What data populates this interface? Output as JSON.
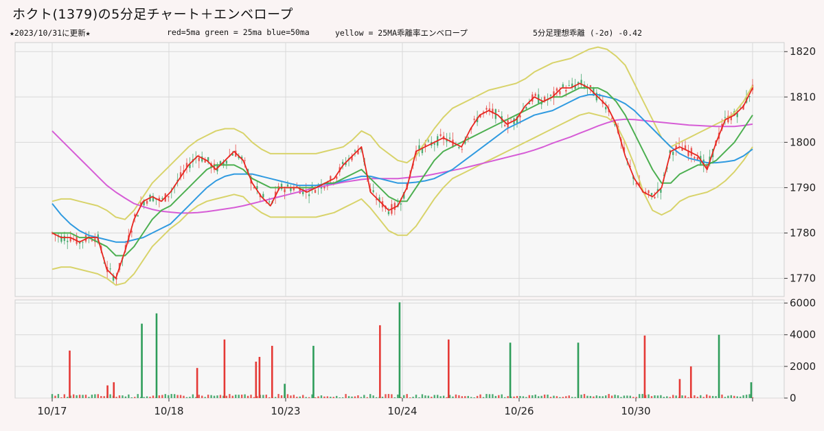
{
  "title": "ホクト(1379)の5分足チャート＋エンベロープ",
  "subtitle": {
    "updated": "★2023/10/31に更新★",
    "legend_ma": "red=5ma green = 25ma blue=50ma",
    "legend_env": "yellow = 25MA乖離率エンベロープ",
    "deviation": "5分足理想乖離 (-2σ) -0.42"
  },
  "colors": {
    "ma5": "#e8251f",
    "ma25": "#4caf50",
    "ma50": "#2f9ae0",
    "ma_long": "#d65cd6",
    "envelope": "#d8d36a",
    "candle_up": "#e53935",
    "candle_down": "#2e9d5a"
  },
  "chart_data": [
    {
      "type": "candlestick",
      "x_tick_labels": [
        "10/17",
        "10/18",
        "10/23",
        "10/24",
        "10/26",
        "10/30"
      ],
      "y_ticks": [
        1770,
        1780,
        1790,
        1800,
        1810,
        1820
      ],
      "ylim": [
        1766,
        1822
      ],
      "series": [
        {
          "name": "5ma",
          "values": [
            1780,
            1779,
            1779,
            1778,
            1779,
            1779,
            1772,
            1770,
            1776,
            1783,
            1787,
            1788,
            1787,
            1789,
            1792,
            1795,
            1797,
            1796,
            1794,
            1796,
            1798,
            1796,
            1791,
            1788,
            1786,
            1790,
            1790,
            1790,
            1789,
            1790,
            1791,
            1792,
            1795,
            1797,
            1799,
            1789,
            1787,
            1785,
            1786,
            1790,
            1798,
            1799,
            1800,
            1801,
            1800,
            1799,
            1803,
            1806,
            1807,
            1806,
            1804,
            1805,
            1808,
            1810,
            1809,
            1810,
            1812,
            1812,
            1813,
            1812,
            1810,
            1808,
            1804,
            1797,
            1792,
            1789,
            1788,
            1790,
            1798,
            1799,
            1798,
            1797,
            1794,
            1800,
            1805,
            1806,
            1808,
            1812
          ]
        },
        {
          "name": "25ma",
          "values": [
            1780,
            1780,
            1780,
            1779,
            1779,
            1778,
            1777,
            1775,
            1775,
            1777,
            1780,
            1783,
            1785,
            1786,
            1788,
            1790,
            1792,
            1794,
            1795,
            1795,
            1795,
            1794,
            1792,
            1791,
            1790,
            1790,
            1790,
            1790,
            1790,
            1790,
            1791,
            1791,
            1792,
            1793,
            1794,
            1792,
            1790,
            1788,
            1787,
            1787,
            1790,
            1793,
            1796,
            1798,
            1799,
            1800,
            1801,
            1802,
            1803,
            1804,
            1805,
            1806,
            1807,
            1808,
            1809,
            1810,
            1810,
            1811,
            1812,
            1812,
            1812,
            1811,
            1809,
            1806,
            1802,
            1798,
            1794,
            1791,
            1791,
            1793,
            1794,
            1795,
            1795,
            1796,
            1798,
            1800,
            1803,
            1806
          ]
        },
        {
          "name": "50ma",
          "values": [
            1786.5,
            1784,
            1782,
            1780.5,
            1779.5,
            1779,
            1778.5,
            1778,
            1778,
            1778.5,
            1779,
            1780,
            1781,
            1782,
            1784,
            1786,
            1788,
            1790,
            1791.5,
            1792.5,
            1793,
            1793,
            1793,
            1792.5,
            1792,
            1791.5,
            1791,
            1790.5,
            1790.5,
            1790.5,
            1790.8,
            1791,
            1791.5,
            1792,
            1792.5,
            1792.5,
            1792,
            1791.5,
            1791,
            1791,
            1791.2,
            1791.5,
            1792,
            1793,
            1794,
            1795.5,
            1797,
            1798.5,
            1800,
            1801.5,
            1803,
            1804,
            1805,
            1806,
            1806.5,
            1807,
            1808,
            1809,
            1810,
            1810.5,
            1810.5,
            1810,
            1809.5,
            1808.5,
            1807,
            1805,
            1803,
            1801,
            1799,
            1797.5,
            1796.5,
            1796,
            1795.5,
            1795.5,
            1795.7,
            1796,
            1797,
            1798.5
          ]
        },
        {
          "name": "long_ma",
          "values": [
            1802.5,
            1800.5,
            1798.5,
            1796.5,
            1794.5,
            1792.5,
            1790.5,
            1789,
            1787.7,
            1786.5,
            1785.8,
            1785.2,
            1784.8,
            1784.6,
            1784.4,
            1784.4,
            1784.5,
            1784.7,
            1785,
            1785.3,
            1785.6,
            1786,
            1786.5,
            1787,
            1787.5,
            1788,
            1788.5,
            1789,
            1789.5,
            1790,
            1790.4,
            1790.8,
            1791.2,
            1791.5,
            1791.8,
            1792,
            1792,
            1792,
            1792,
            1792.2,
            1792.4,
            1792.6,
            1793,
            1793.4,
            1793.8,
            1794.2,
            1794.7,
            1795.2,
            1795.7,
            1796.2,
            1796.7,
            1797.2,
            1797.7,
            1798.3,
            1799,
            1799.8,
            1800.5,
            1801.2,
            1802,
            1802.8,
            1803.6,
            1804.3,
            1804.9,
            1805.1,
            1805,
            1804.8,
            1804.6,
            1804.4,
            1804.2,
            1804,
            1803.8,
            1803.7,
            1803.6,
            1803.5,
            1803.5,
            1803.5,
            1803.7,
            1804
          ]
        },
        {
          "name": "env_upper",
          "values": [
            1787,
            1787.5,
            1787.5,
            1787,
            1786.5,
            1786,
            1785,
            1783.5,
            1783,
            1785,
            1788,
            1791,
            1793,
            1795,
            1797,
            1799,
            1800.5,
            1801.5,
            1802.5,
            1803,
            1803,
            1802,
            1800,
            1798.5,
            1797.5,
            1797.5,
            1797.5,
            1797.5,
            1797.5,
            1797.5,
            1798,
            1798.5,
            1799,
            1800.5,
            1802.5,
            1801.5,
            1799,
            1797.5,
            1796,
            1795.5,
            1797,
            1800,
            1803,
            1805.5,
            1807.5,
            1808.5,
            1809.5,
            1810.5,
            1811.5,
            1812,
            1812.5,
            1813,
            1814,
            1815.5,
            1816.5,
            1817.5,
            1818,
            1818.5,
            1819.5,
            1820.5,
            1821,
            1820.5,
            1819,
            1817,
            1813,
            1809,
            1805,
            1801,
            1799,
            1800,
            1801,
            1802,
            1803,
            1804,
            1805,
            1806.5,
            1809,
            1812.5
          ]
        },
        {
          "name": "env_lower",
          "values": [
            1772,
            1772.5,
            1772.5,
            1772,
            1771.5,
            1771,
            1770,
            1768.5,
            1769,
            1771,
            1774,
            1777,
            1779,
            1781,
            1782.5,
            1784.5,
            1786,
            1787,
            1787.5,
            1788,
            1788.5,
            1788,
            1786,
            1784.5,
            1783.5,
            1783.5,
            1783.5,
            1783.5,
            1783.5,
            1783.5,
            1784,
            1784.5,
            1785.5,
            1786.5,
            1787.5,
            1785.5,
            1783,
            1780.5,
            1779.5,
            1779.5,
            1781.5,
            1784.5,
            1787.5,
            1790,
            1792,
            1793,
            1794,
            1795,
            1796,
            1797,
            1798,
            1799,
            1800,
            1801,
            1802,
            1803,
            1804,
            1805,
            1806,
            1806.5,
            1806,
            1805.5,
            1804,
            1800,
            1795,
            1789,
            1785,
            1784,
            1785,
            1787,
            1788,
            1788.5,
            1789,
            1790,
            1791.5,
            1793.5,
            1796,
            1799
          ]
        }
      ]
    },
    {
      "type": "bar",
      "y_ticks": [
        0,
        2000,
        4000,
        6000
      ],
      "ylim": [
        0,
        6200
      ],
      "spikes": [
        {
          "pos": 0.025,
          "value": 3000,
          "color": "up"
        },
        {
          "pos": 0.079,
          "value": 800,
          "color": "up"
        },
        {
          "pos": 0.088,
          "value": 1000,
          "color": "up"
        },
        {
          "pos": 0.128,
          "value": 4700,
          "color": "down"
        },
        {
          "pos": 0.149,
          "value": 5350,
          "color": "down"
        },
        {
          "pos": 0.207,
          "value": 1900,
          "color": "up"
        },
        {
          "pos": 0.246,
          "value": 3700,
          "color": "up"
        },
        {
          "pos": 0.291,
          "value": 2300,
          "color": "up"
        },
        {
          "pos": 0.296,
          "value": 2600,
          "color": "up"
        },
        {
          "pos": 0.314,
          "value": 3300,
          "color": "up"
        },
        {
          "pos": 0.332,
          "value": 900,
          "color": "down"
        },
        {
          "pos": 0.373,
          "value": 3300,
          "color": "down"
        },
        {
          "pos": 0.468,
          "value": 4600,
          "color": "up"
        },
        {
          "pos": 0.496,
          "value": 6050,
          "color": "down"
        },
        {
          "pos": 0.566,
          "value": 3700,
          "color": "up"
        },
        {
          "pos": 0.654,
          "value": 3500,
          "color": "down"
        },
        {
          "pos": 0.751,
          "value": 3500,
          "color": "down"
        },
        {
          "pos": 0.846,
          "value": 3950,
          "color": "up"
        },
        {
          "pos": 0.896,
          "value": 1200,
          "color": "up"
        },
        {
          "pos": 0.912,
          "value": 2000,
          "color": "up"
        },
        {
          "pos": 0.952,
          "value": 4000,
          "color": "down"
        },
        {
          "pos": 0.998,
          "value": 1000,
          "color": "down"
        }
      ]
    }
  ]
}
